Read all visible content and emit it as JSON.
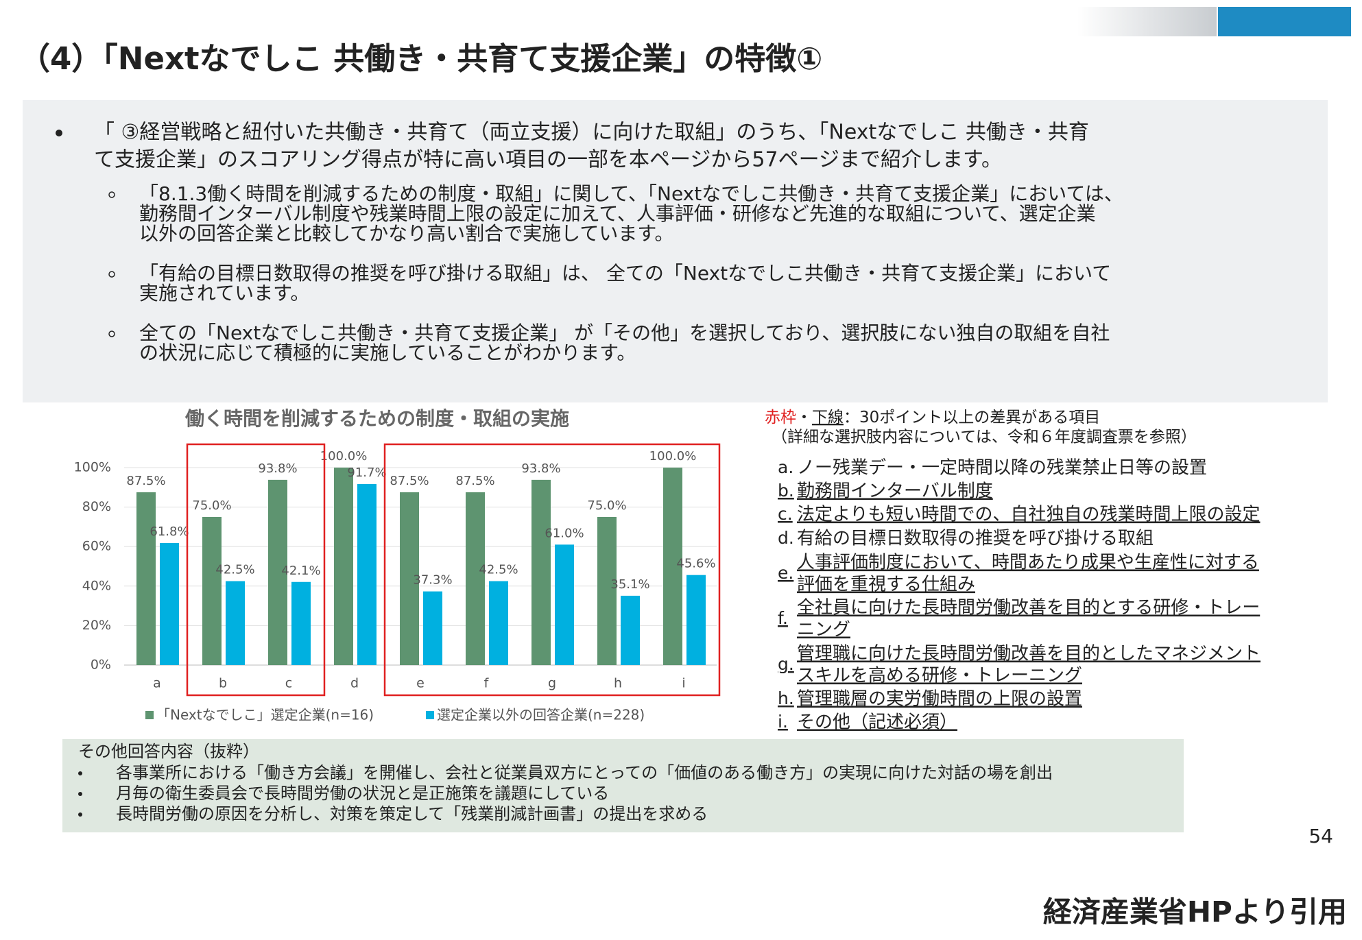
{
  "header": {
    "title": "（4）「Nextなでしこ 共働き・共育て支援企業」の特徴①"
  },
  "summary": {
    "bullet_lines": [
      "「 ③経営戦略と紐付いた共働き・共育て（両立支援）に向けた取組」のうち、「Nextなでしこ 共働き・共育",
      "て支援企業」のスコアリング得点が特に高い項目の一部を本ページから57ページまで紹介します。"
    ],
    "sub_bullets": [
      [
        "「8.1.3働く時間を削減するための制度・取組」に関して、「Nextなでしこ共働き・共育て支援企業」においては、",
        "勤務間インターバル制度や残業時間上限の設定に加えて、人事評価・研修など先進的な取組について、選定企業",
        "以外の回答企業と比較してかなり高い割合で実施しています。"
      ],
      [
        "「有給の目標日数取得の推奨を呼び掛ける取組」は、 全ての「Nextなでしこ共働き・共育て支援企業」において",
        "実施されています。"
      ],
      [
        "全ての「Nextなでしこ共働き・共育て支援企業」 が「その他」を選択しており、選択肢にない独自の取組を自社",
        "の状況に応じて積極的に実施していることがわかります。"
      ]
    ]
  },
  "chart_data": {
    "type": "bar",
    "title": "働く時間を削減するための制度・取組の実施",
    "categories": [
      "a",
      "b",
      "c",
      "d",
      "e",
      "f",
      "g",
      "h",
      "i"
    ],
    "series": [
      {
        "name": "「Nextなでしこ」選定企業(n=16)",
        "color": "#5e9470",
        "values": [
          87.5,
          75.0,
          93.8,
          100.0,
          87.5,
          87.5,
          93.8,
          75.0,
          100.0
        ],
        "value_labels": [
          "87.5%",
          "75.0%",
          "93.8%",
          "100.0%",
          "87.5%",
          "87.5%",
          "93.8%",
          "75.0%",
          "100.0%"
        ]
      },
      {
        "name": "選定企業以外の回答企業(n=228)",
        "color": "#00b0e0",
        "values": [
          61.8,
          42.5,
          42.1,
          91.7,
          37.3,
          42.5,
          61.0,
          35.1,
          45.6
        ],
        "value_labels": [
          "61.8%",
          "42.5%",
          "42.1%",
          "91.7%",
          "37.3%",
          "42.5%",
          "61.0%",
          "35.1%",
          "45.6%"
        ]
      }
    ],
    "ylim": [
      0,
      100
    ],
    "yticks": [
      {
        "value": 0,
        "label": "0%"
      },
      {
        "value": 20,
        "label": "20%"
      },
      {
        "value": 40,
        "label": "40%"
      },
      {
        "value": 60,
        "label": "60%"
      },
      {
        "value": 80,
        "label": "80%"
      },
      {
        "value": 100,
        "label": "100%"
      }
    ],
    "highlight_ranges": [
      [
        1,
        2
      ],
      [
        4,
        8
      ]
    ],
    "highlight_color": "#e02020"
  },
  "notes": {
    "legend_red": "赤枠",
    "legend_dot": "・",
    "legend_underline": "下線",
    "legend_rest": "：30ポイント以上の差異がある項目",
    "reference": "（詳細な選択肢内容については、令和６年度調査票を参照）",
    "items": [
      {
        "letter": "a.",
        "lines": [
          "ノー残業デー・一定時間以降の残業禁止日等の設置"
        ],
        "underline": false
      },
      {
        "letter": "b.",
        "lines": [
          "勤務間インターバル制度"
        ],
        "underline": true
      },
      {
        "letter": "c.",
        "lines": [
          "法定よりも短い時間での、自社独自の残業時間上限の設定"
        ],
        "underline": true
      },
      {
        "letter": "d.",
        "lines": [
          "有給の目標日数取得の推奨を呼び掛ける取組"
        ],
        "underline": false
      },
      {
        "letter": "e.",
        "lines": [
          "人事評価制度において、時間あたり成果や生産性に対する",
          "評価を重視する仕組み"
        ],
        "underline": true
      },
      {
        "letter": "f.",
        "lines": [
          "全社員に向けた長時間労働改善を目的とする研修・トレー",
          "ニング"
        ],
        "underline": true
      },
      {
        "letter": "g.",
        "lines": [
          "管理職に向けた長時間労働改善を目的としたマネジメント",
          "スキルを高める研修・トレーニング"
        ],
        "underline": true
      },
      {
        "letter": "h.",
        "lines": [
          "管理職層の実労働時間の上限の設置"
        ],
        "underline": true
      },
      {
        "letter": "i.",
        "lines": [
          "その他（記述必須）"
        ],
        "underline": true
      }
    ]
  },
  "other_answers": {
    "heading": "その他回答内容（抜粋）",
    "items": [
      "各事業所における「働き方会議」を開催し、会社と従業員双方にとっての「価値のある働き方」の実現に向けた対話の場を創出",
      "月毎の衛生委員会で長時間労働の状況と是正施策を議題にしている",
      "長時間労働の原因を分析し、対策を策定して「残業削減計画書」の提出を求める"
    ]
  },
  "page_number": "54",
  "source": "経済産業省HPより引用"
}
